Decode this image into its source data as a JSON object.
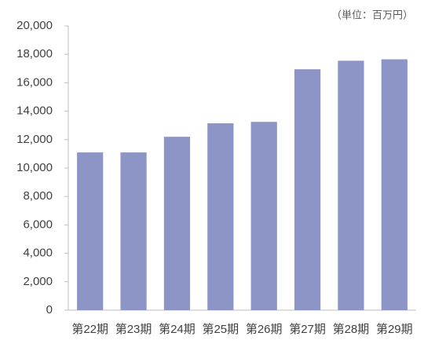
{
  "chart_data": {
    "type": "bar",
    "annotation": "（単位：百万円）",
    "categories": [
      "第22期",
      "第23期",
      "第24期",
      "第25期",
      "第26期",
      "第27期",
      "第28期",
      "第29期"
    ],
    "values": [
      11100,
      11100,
      12200,
      13150,
      13250,
      16950,
      17550,
      17650
    ],
    "color": "#8c95c5",
    "ylim": [
      0,
      20000
    ],
    "yticks": [
      0,
      {
        "value": 2000,
        "label": "2,000"
      },
      {
        "value": 4000,
        "label": "4,000"
      },
      {
        "value": 6000,
        "label": "6,000"
      },
      {
        "value": 8000,
        "label": "8,000"
      },
      {
        "value": 10000,
        "label": "10,000"
      },
      {
        "value": 12000,
        "label": "12,000"
      },
      {
        "value": 14000,
        "label": "14,000"
      },
      {
        "value": 16000,
        "label": "16,000"
      },
      {
        "value": 18000,
        "label": "18,000"
      },
      {
        "value": 20000,
        "label": "20,000"
      }
    ],
    "grid": false
  }
}
